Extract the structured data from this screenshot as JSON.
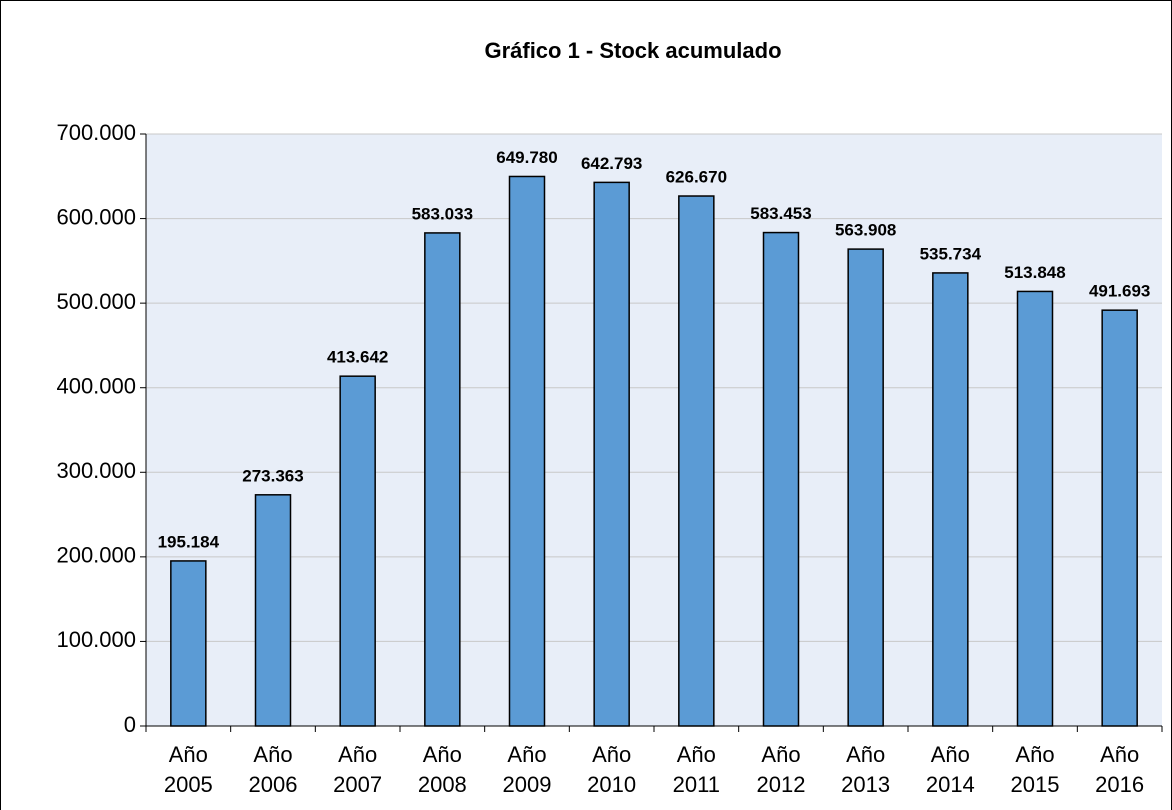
{
  "chart_data": {
    "type": "bar",
    "title": "Gráfico 1 - Stock acumulado",
    "categories": [
      "Año 2005",
      "Año 2006",
      "Año 2007",
      "Año 2008",
      "Año 2009",
      "Año 2010",
      "Año 2011",
      "Año 2012",
      "Año 2013",
      "Año 2014",
      "Año 2015",
      "Año 2016"
    ],
    "values": [
      195184,
      273363,
      413642,
      583033,
      649780,
      642793,
      626670,
      583453,
      563908,
      535734,
      513848,
      491693
    ],
    "value_labels": [
      "195.184",
      "273.363",
      "413.642",
      "583.033",
      "649.780",
      "642.793",
      "626.670",
      "583.453",
      "563.908",
      "535.734",
      "513.848",
      "491.693"
    ],
    "color": "#5b9bd5",
    "ylim": [
      0,
      700000
    ],
    "yticks": [
      0,
      {
        "value": 100000,
        "label": "100.000"
      },
      {
        "value": 200000,
        "label": "200.000"
      },
      {
        "value": 300000,
        "label": "300.000"
      },
      {
        "value": 400000,
        "label": "400.000"
      },
      {
        "value": 500000,
        "label": "500.000"
      },
      {
        "value": 600000,
        "label": "600.000"
      },
      {
        "value": 700000,
        "label": "700.000"
      }
    ],
    "grid": true
  }
}
